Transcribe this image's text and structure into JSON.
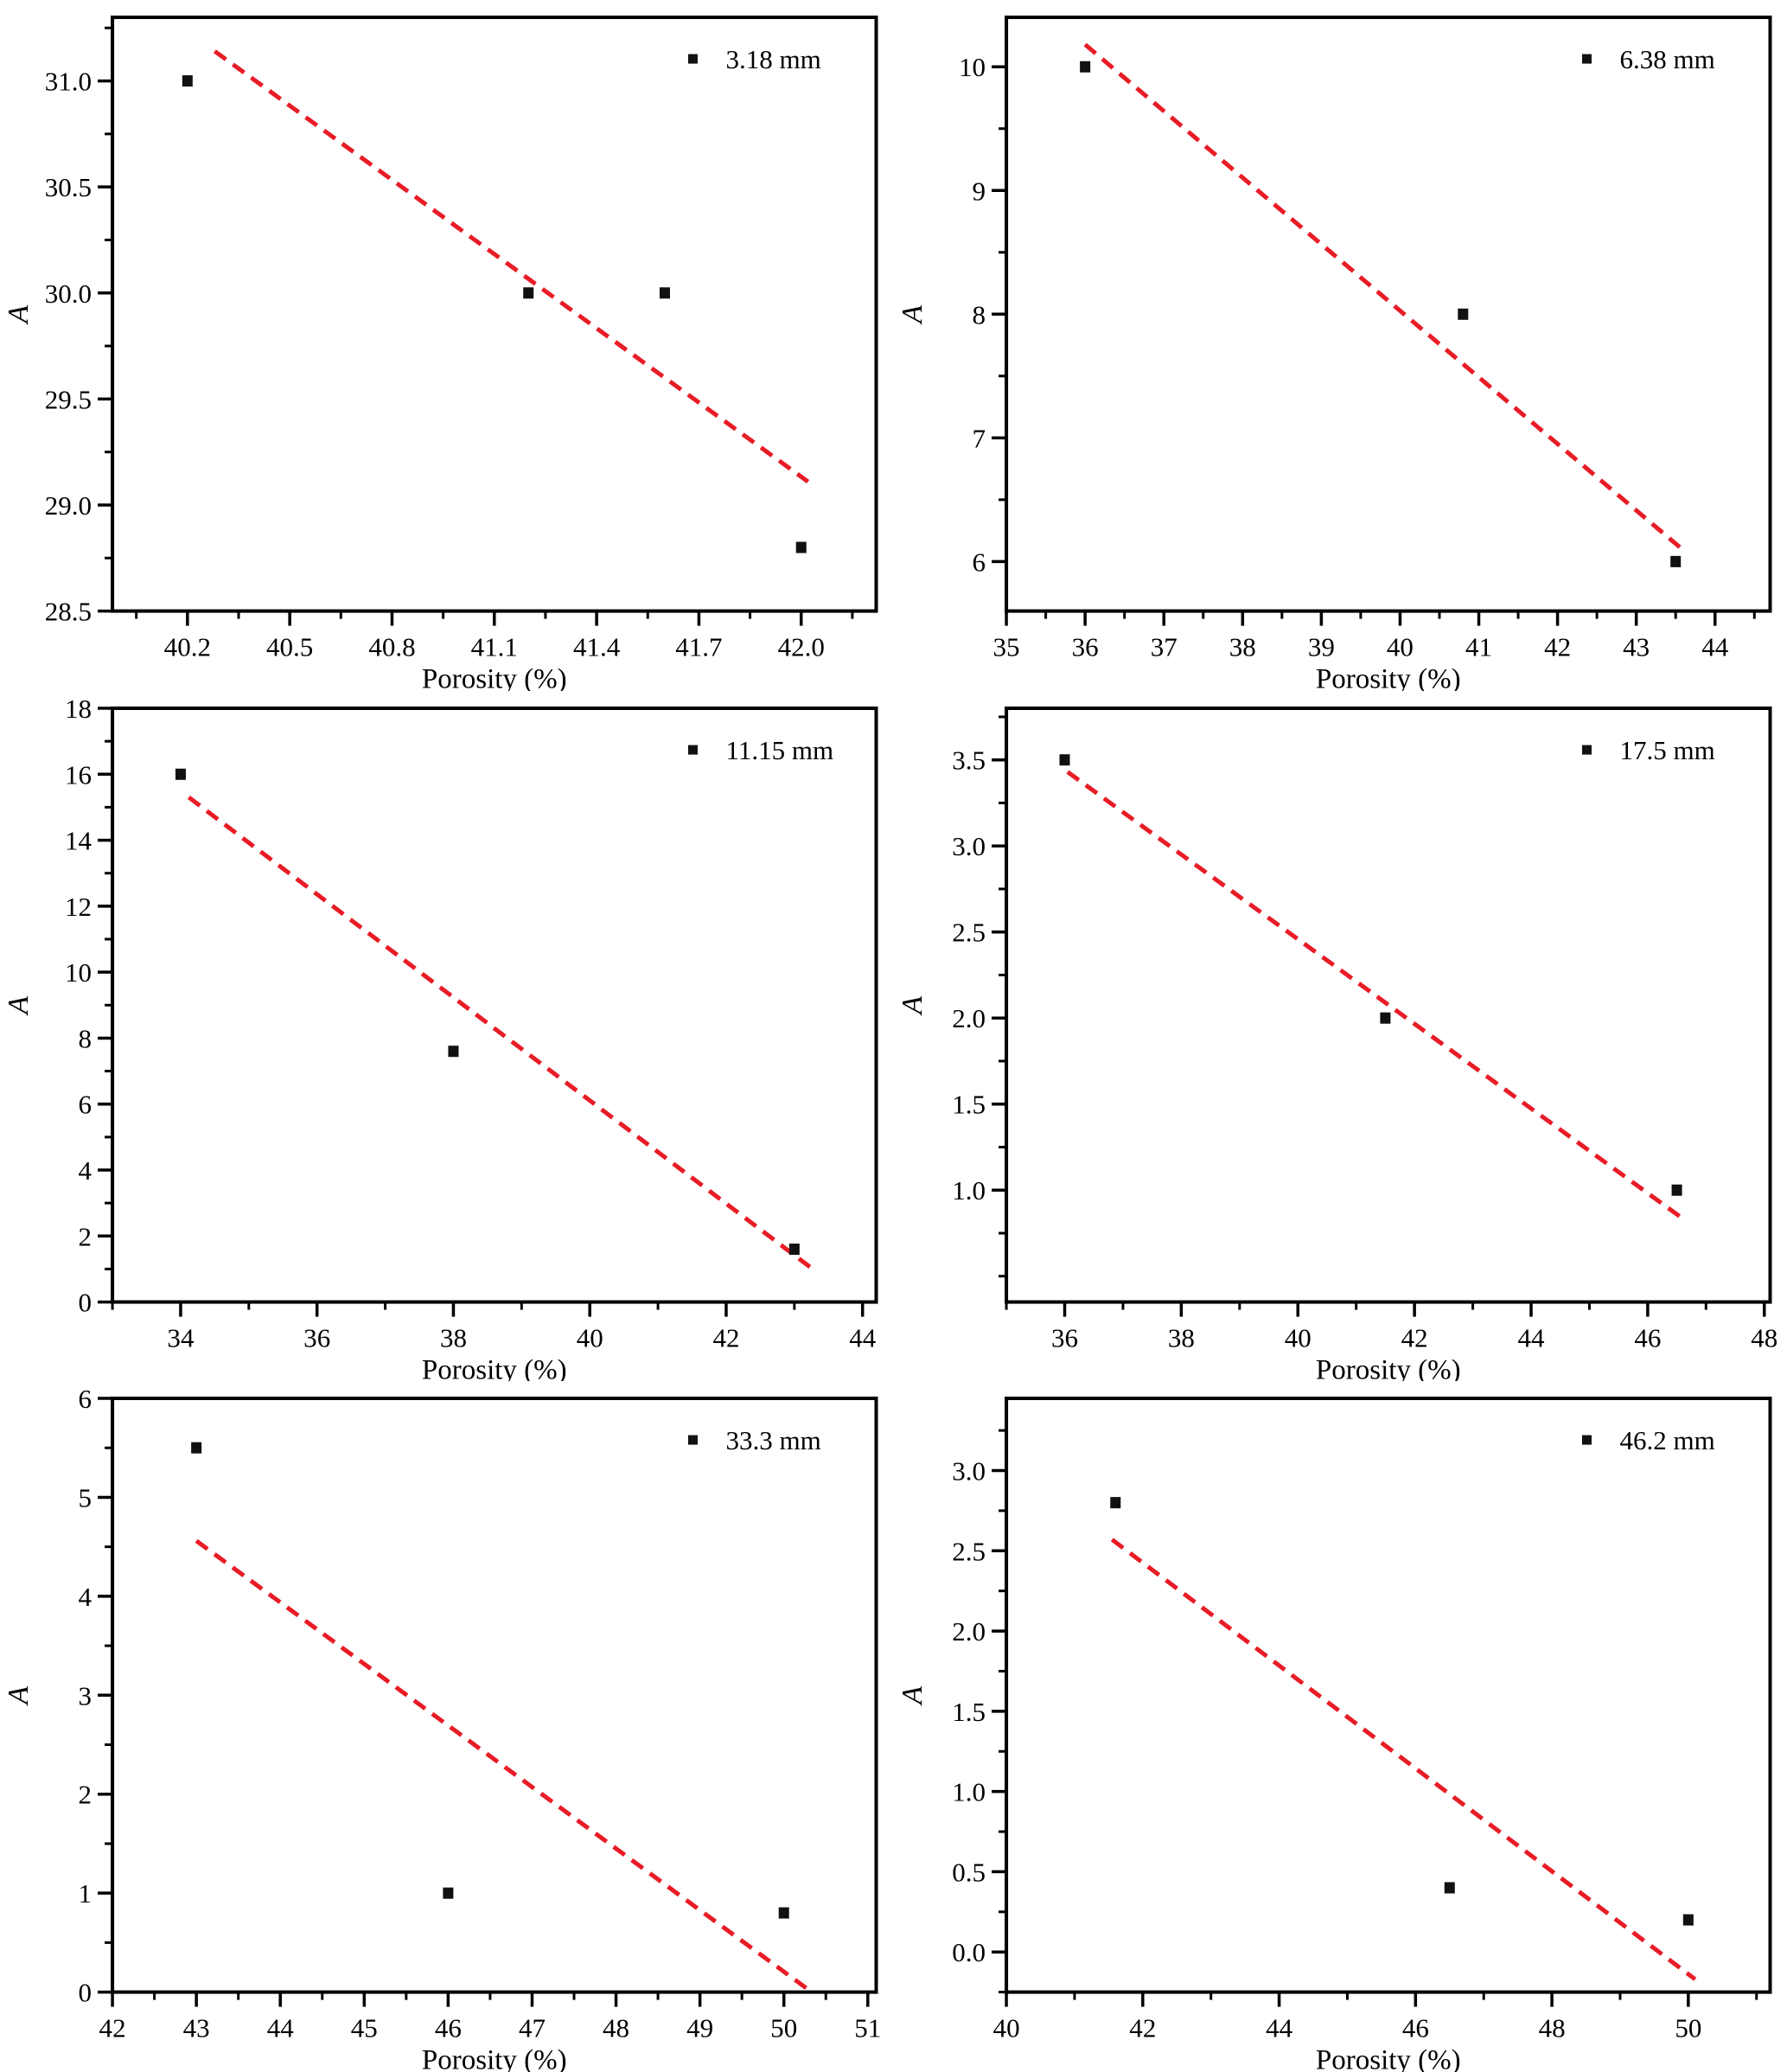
{
  "figure": {
    "xlabel": "Porosity (%)",
    "ylabel": "A",
    "line_color": "#e81c26",
    "marker_color": "#111111",
    "axis_color": "#000000"
  },
  "chart_data": [
    {
      "type": "scatter",
      "legend": "3.18 mm",
      "xlabel": "Porosity (%)",
      "ylabel": "A",
      "xlim": [
        39.98,
        42.22
      ],
      "ylim": [
        28.5,
        31.3
      ],
      "xticks": [
        40.2,
        40.5,
        40.8,
        41.1,
        41.4,
        41.7,
        42.0
      ],
      "xtick_labels": [
        "40.2",
        "40.5",
        "40.8",
        "41.1",
        "41.4",
        "41.7",
        "42.0"
      ],
      "x_minor_step": 0.15,
      "yticks": [
        28.5,
        29.0,
        29.5,
        30.0,
        30.5,
        31.0
      ],
      "ytick_labels": [
        "28.5",
        "29.0",
        "29.5",
        "30.0",
        "30.5",
        "31.0"
      ],
      "y_minor_step": 0.25,
      "points": [
        [
          40.2,
          31.0
        ],
        [
          41.2,
          30.0
        ],
        [
          41.6,
          30.0
        ],
        [
          42.0,
          28.8
        ]
      ],
      "trendline": {
        "x1": 40.28,
        "y1": 31.14,
        "x2": 42.02,
        "y2": 29.11
      },
      "grid": false,
      "legend_position": "top-right"
    },
    {
      "type": "scatter",
      "legend": "6.38 mm",
      "xlabel": "Porosity (%)",
      "ylabel": "A",
      "xlim": [
        35.0,
        44.7
      ],
      "ylim": [
        5.6,
        10.4
      ],
      "xticks": [
        35,
        36,
        37,
        38,
        39,
        40,
        41,
        42,
        43,
        44
      ],
      "xtick_labels": [
        "35",
        "36",
        "37",
        "38",
        "39",
        "40",
        "41",
        "42",
        "43",
        "44"
      ],
      "x_minor_step": 0.5,
      "yticks": [
        6,
        7,
        8,
        9,
        10
      ],
      "ytick_labels": [
        "6",
        "7",
        "8",
        "9",
        "10"
      ],
      "y_minor_step": 0.5,
      "points": [
        [
          36,
          10
        ],
        [
          40.8,
          8
        ],
        [
          43.5,
          6
        ]
      ],
      "trendline": {
        "x1": 36.0,
        "y1": 10.18,
        "x2": 43.62,
        "y2": 6.08
      },
      "grid": false,
      "legend_position": "top-right"
    },
    {
      "type": "scatter",
      "legend": "11.15 mm",
      "xlabel": "Porosity (%)",
      "ylabel": "A",
      "xlim": [
        33.0,
        44.2
      ],
      "ylim": [
        0,
        18
      ],
      "xticks": [
        34,
        36,
        38,
        40,
        42,
        44
      ],
      "xtick_labels": [
        "34",
        "36",
        "38",
        "40",
        "42",
        "44"
      ],
      "x_minor_step": 1,
      "yticks": [
        0,
        2,
        4,
        6,
        8,
        10,
        12,
        14,
        16,
        18
      ],
      "ytick_labels": [
        "0",
        "2",
        "4",
        "6",
        "8",
        "10",
        "12",
        "14",
        "16",
        "18"
      ],
      "y_minor_step": 1,
      "points": [
        [
          34,
          16
        ],
        [
          38,
          7.6
        ],
        [
          43,
          1.6
        ]
      ],
      "trendline": {
        "x1": 34.12,
        "y1": 15.3,
        "x2": 43.3,
        "y2": 0.95
      },
      "grid": false,
      "legend_position": "top-right"
    },
    {
      "type": "scatter",
      "legend": "17.5 mm",
      "xlabel": "Porosity (%)",
      "ylabel": "A",
      "xlim": [
        35.0,
        48.1
      ],
      "ylim": [
        0.35,
        3.8
      ],
      "xticks": [
        36,
        38,
        40,
        42,
        44,
        46,
        48
      ],
      "xtick_labels": [
        "36",
        "38",
        "40",
        "42",
        "44",
        "46",
        "48"
      ],
      "x_minor_step": 1,
      "yticks": [
        1.0,
        1.5,
        2.0,
        2.5,
        3.0,
        3.5
      ],
      "ytick_labels": [
        "1.0",
        "1.5",
        "2.0",
        "2.5",
        "3.0",
        "3.5"
      ],
      "y_minor_step": 0.25,
      "points": [
        [
          36,
          3.5
        ],
        [
          41.5,
          2.0
        ],
        [
          46.5,
          1.0
        ]
      ],
      "trendline": {
        "x1": 36.05,
        "y1": 3.43,
        "x2": 46.62,
        "y2": 0.83
      },
      "grid": false,
      "legend_position": "top-right"
    },
    {
      "type": "scatter",
      "legend": "33.3 mm",
      "xlabel": "Porosity (%)",
      "ylabel": "A",
      "xlim": [
        42.0,
        51.1
      ],
      "ylim": [
        0,
        6
      ],
      "xticks": [
        42,
        43,
        44,
        45,
        46,
        47,
        48,
        49,
        50,
        51
      ],
      "xtick_labels": [
        "42",
        "43",
        "44",
        "45",
        "46",
        "47",
        "48",
        "49",
        "50",
        "51"
      ],
      "x_minor_step": 0.5,
      "yticks": [
        0,
        1,
        2,
        3,
        4,
        5,
        6
      ],
      "ytick_labels": [
        "0",
        "1",
        "2",
        "3",
        "4",
        "5",
        "6"
      ],
      "y_minor_step": 0.5,
      "points": [
        [
          43,
          5.5
        ],
        [
          46,
          1.0
        ],
        [
          50,
          0.8
        ]
      ],
      "trendline": {
        "x1": 43.0,
        "y1": 4.56,
        "x2": 50.3,
        "y2": 0.02
      },
      "grid": false,
      "legend_position": "top-right"
    },
    {
      "type": "scatter",
      "legend": "46.2 mm",
      "xlabel": "Porosity (%)",
      "ylabel": "A",
      "xlim": [
        40.0,
        51.2
      ],
      "ylim": [
        -0.25,
        3.45
      ],
      "xticks": [
        40,
        42,
        44,
        46,
        48,
        50
      ],
      "xtick_labels": [
        "40",
        "42",
        "44",
        "46",
        "48",
        "50"
      ],
      "x_minor_step": 1,
      "yticks": [
        0.0,
        0.5,
        1.0,
        1.5,
        2.0,
        2.5,
        3.0
      ],
      "ytick_labels": [
        "0.0",
        "0.5",
        "1.0",
        "1.5",
        "2.0",
        "2.5",
        "3.0"
      ],
      "y_minor_step": 0.25,
      "points": [
        [
          41.6,
          2.8
        ],
        [
          46.5,
          0.4
        ],
        [
          50,
          0.2
        ]
      ],
      "trendline": {
        "x1": 41.55,
        "y1": 2.57,
        "x2": 50.1,
        "y2": -0.17
      },
      "grid": false,
      "legend_position": "top-right"
    }
  ]
}
